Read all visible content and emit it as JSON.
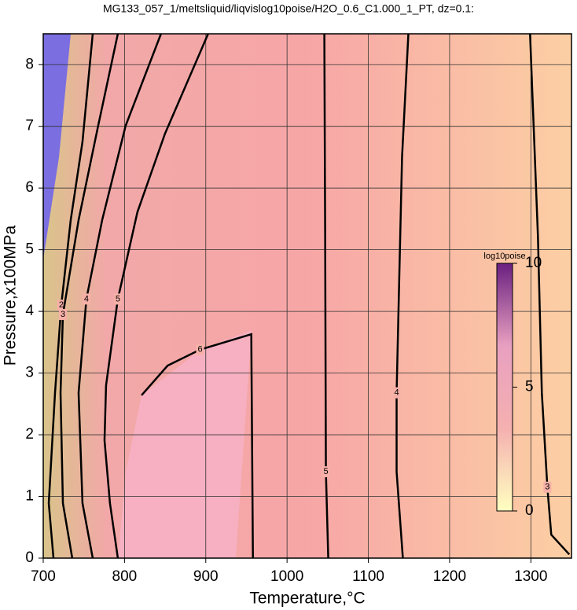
{
  "chart_data": {
    "type": "contour",
    "title": "MG133_057_1/meltsliquid/liqvislog10poise/H2O_0.6_C1.000_1_PT, dz=0.1:",
    "x_label": "Temperature,°C",
    "y_label": "Pressure,x100MPa",
    "xlim": [
      700,
      1350
    ],
    "ylim": [
      0,
      8.5
    ],
    "xticks": [
      700,
      800,
      900,
      1000,
      1100,
      1200,
      1300
    ],
    "yticks": [
      0,
      1,
      2,
      3,
      4,
      5,
      6,
      7,
      8
    ],
    "grid": true,
    "color": "#000000",
    "contours": [
      {
        "level": 2,
        "x": [
          712.6,
          706.8,
          714.5,
          722.2,
          733.8,
          748.3,
          760.9
        ],
        "y": [
          0,
          0.89,
          2.68,
          4.1,
          5.48,
          6.75,
          8.5
        ]
      },
      {
        "level": 3,
        "x": [
          735.7,
          724.2,
          721.3,
          724.2,
          743.5,
          767.6,
          791.8
        ],
        "y": [
          0,
          0.89,
          2.68,
          3.95,
          5.48,
          7.01,
          8.5
        ]
      },
      {
        "level": 4,
        "x": [
          760.9,
          748.3,
          743.5,
          753.1,
          772.5,
          801.4,
          844.9
        ],
        "y": [
          0,
          0.89,
          2.68,
          4.2,
          5.48,
          7.01,
          8.5
        ]
      },
      {
        "level": 5,
        "x": [
          791.8,
          782.1,
          775.4,
          777.3,
          791.8,
          815.9,
          849.8,
          902.9
        ],
        "y": [
          0,
          0.89,
          1.91,
          2.8,
          4.2,
          5.61,
          6.88,
          8.5
        ]
      },
      {
        "level": 6,
        "x": [
          821,
          853,
          893,
          956,
          958
        ],
        "y": [
          2.64,
          3.12,
          3.38,
          3.63,
          0
        ]
      },
      {
        "level": 5,
        "x": [
          1045.9,
          1046.9,
          1047.8,
          1050.7
        ],
        "y": [
          8.5,
          5.22,
          1.4,
          0
        ]
      },
      {
        "level": 4,
        "x": [
          1149.3,
          1141.5,
          1134.8,
          1134.8,
          1142.5
        ],
        "y": [
          8.5,
          6.5,
          2.68,
          1.4,
          0
        ]
      },
      {
        "level": 3,
        "x": [
          1299,
          1308.7,
          1313.5,
          1320.3,
          1325.1,
          1347.3
        ],
        "y": [
          8.5,
          5.22,
          2.68,
          1.15,
          0.38,
          0.06
        ]
      }
    ],
    "colorbar": {
      "label": "log10poise",
      "lim": [
        0,
        10
      ],
      "ticks": [
        0,
        5,
        10
      ],
      "colors": [
        "#ffffc0",
        "#f5b0b0",
        "#e8a0c0",
        "#6a2080"
      ]
    }
  }
}
